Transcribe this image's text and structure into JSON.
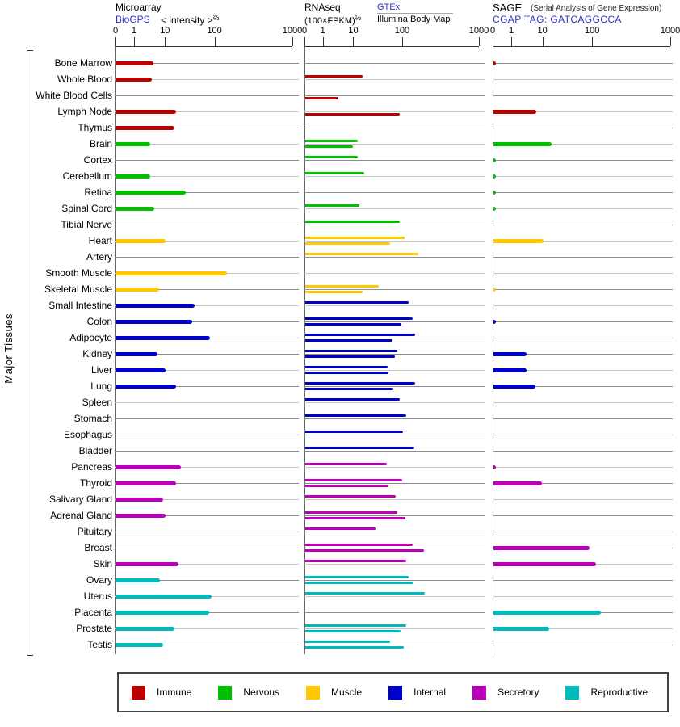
{
  "panels": {
    "microarray": {
      "title": "Microarray",
      "link": "BioGPS",
      "transform": "< intensity >",
      "transform_sup": "⅔"
    },
    "rnaseq": {
      "title": "RNAseq",
      "transform": "(100×FPKM)",
      "transform_sup": "½",
      "link": "GTEx",
      "second_source": "Illumina Body Map"
    },
    "sage": {
      "title": "SAGE",
      "subtitle": "(Serial Analysis of Gene Expression)",
      "tag": "CGAP TAG: GATCAGGCCA"
    }
  },
  "left_axis_label": "Major Tissues",
  "axis_ticks": [
    "0",
    "1",
    "10",
    "100",
    "1000"
  ],
  "colors": {
    "link": "#3333CC",
    "grid_dark": "#8C8C8C",
    "grid_light": "#C4C4C4",
    "axis": "#333333",
    "immune": "#BB0000",
    "nervous": "#00C000",
    "muscle": "#FFC800",
    "internal": "#0000CC",
    "secretory": "#BB00BB",
    "reproductive": "#00BBBB"
  },
  "legend": {
    "items": [
      {
        "label": "Immune",
        "category": "immune",
        "color": "#BB0000"
      },
      {
        "label": "Nervous",
        "category": "nervous",
        "color": "#00C000"
      },
      {
        "label": "Muscle",
        "category": "muscle",
        "color": "#FFC800"
      },
      {
        "label": "Internal",
        "category": "internal",
        "color": "#0000CC"
      },
      {
        "label": "Secretory",
        "category": "secretory",
        "color": "#BB00BB"
      },
      {
        "label": "Reproductive",
        "category": "reproductive",
        "color": "#00BBBB"
      }
    ]
  },
  "chart_data": {
    "type": "bar",
    "orientation": "horizontal",
    "x_scale": "log-like with zero origin",
    "x_ticks": [
      0,
      1,
      10,
      100,
      1000
    ],
    "panels": [
      {
        "name": "Microarray",
        "series": [
          "BioGPS < intensity >^(2/3)"
        ]
      },
      {
        "name": "RNAseq",
        "series": [
          "GTEx (100×FPKM)^(1/2)",
          "Illumina Body Map (100×FPKM)^(1/2)"
        ]
      },
      {
        "name": "SAGE",
        "series": [
          "CGAP TAG: GATCAGGCCA"
        ]
      }
    ],
    "tissues": [
      {
        "name": "Bone Marrow",
        "category": "immune",
        "microarray": 4,
        "rnaseq_gtex": null,
        "rnaseq_illumina": null,
        "sage": 0.15
      },
      {
        "name": "Whole Blood",
        "category": "immune",
        "microarray": 3.6,
        "rnaseq_gtex": 15,
        "rnaseq_illumina": null,
        "sage": null
      },
      {
        "name": "White Blood Cells",
        "category": "immune",
        "microarray": null,
        "rnaseq_gtex": null,
        "rnaseq_illumina": 3,
        "sage": null
      },
      {
        "name": "Lymph Node",
        "category": "immune",
        "microarray": 16,
        "rnaseq_gtex": null,
        "rnaseq_illumina": 85,
        "sage": 6
      },
      {
        "name": "Thymus",
        "category": "immune",
        "microarray": 15,
        "rnaseq_gtex": null,
        "rnaseq_illumina": null,
        "sage": null
      },
      {
        "name": "Brain",
        "category": "nervous",
        "microarray": 3.2,
        "rnaseq_gtex": 12,
        "rnaseq_illumina": 9,
        "sage": 15
      },
      {
        "name": "Cortex",
        "category": "nervous",
        "microarray": null,
        "rnaseq_gtex": 12,
        "rnaseq_illumina": null,
        "sage": 0.15
      },
      {
        "name": "Cerebellum",
        "category": "nervous",
        "microarray": 3.2,
        "rnaseq_gtex": 16,
        "rnaseq_illumina": null,
        "sage": 0.15
      },
      {
        "name": "Retina",
        "category": "nervous",
        "microarray": 25,
        "rnaseq_gtex": null,
        "rnaseq_illumina": null,
        "sage": 0.15
      },
      {
        "name": "Spinal Cord",
        "category": "nervous",
        "microarray": 4.3,
        "rnaseq_gtex": 13,
        "rnaseq_illumina": null,
        "sage": 0.15
      },
      {
        "name": "Tibial Nerve",
        "category": "nervous",
        "microarray": null,
        "rnaseq_gtex": 85,
        "rnaseq_illumina": null,
        "sage": null
      },
      {
        "name": "Heart",
        "category": "muscle",
        "microarray": 10,
        "rnaseq_gtex": 105,
        "rnaseq_illumina": 55,
        "sage": 10
      },
      {
        "name": "Artery",
        "category": "muscle",
        "microarray": null,
        "rnaseq_gtex": 160,
        "rnaseq_illumina": null,
        "sage": null
      },
      {
        "name": "Smooth Muscle",
        "category": "muscle",
        "microarray": 140,
        "rnaseq_gtex": null,
        "rnaseq_illumina": null,
        "sage": null
      },
      {
        "name": "Skeletal Muscle",
        "category": "muscle",
        "microarray": 6,
        "rnaseq_gtex": 32,
        "rnaseq_illumina": 15,
        "sage": 0.15
      },
      {
        "name": "Small Intestine",
        "category": "internal",
        "microarray": 38,
        "rnaseq_gtex": 120,
        "rnaseq_illumina": null,
        "sage": null
      },
      {
        "name": "Colon",
        "category": "internal",
        "microarray": 34,
        "rnaseq_gtex": 135,
        "rnaseq_illumina": 93,
        "sage": 0.15
      },
      {
        "name": "Adipocyte",
        "category": "internal",
        "microarray": 77,
        "rnaseq_gtex": 145,
        "rnaseq_illumina": 62,
        "sage": null
      },
      {
        "name": "Kidney",
        "category": "internal",
        "microarray": 5.5,
        "rnaseq_gtex": 77,
        "rnaseq_illumina": 69,
        "sage": 3
      },
      {
        "name": "Liver",
        "category": "internal",
        "microarray": 10,
        "rnaseq_gtex": 49,
        "rnaseq_illumina": 51,
        "sage": 3
      },
      {
        "name": "Lung",
        "category": "internal",
        "microarray": 16,
        "rnaseq_gtex": 145,
        "rnaseq_illumina": 64,
        "sage": 5.5
      },
      {
        "name": "Spleen",
        "category": "internal",
        "microarray": null,
        "rnaseq_gtex": 86,
        "rnaseq_illumina": null,
        "sage": null
      },
      {
        "name": "Stomach",
        "category": "internal",
        "microarray": null,
        "rnaseq_gtex": 110,
        "rnaseq_illumina": null,
        "sage": null
      },
      {
        "name": "Esophagus",
        "category": "internal",
        "microarray": null,
        "rnaseq_gtex": 100,
        "rnaseq_illumina": null,
        "sage": null
      },
      {
        "name": "Bladder",
        "category": "internal",
        "microarray": null,
        "rnaseq_gtex": 140,
        "rnaseq_illumina": null,
        "sage": null
      },
      {
        "name": "Pancreas",
        "category": "secretory",
        "microarray": 20,
        "rnaseq_gtex": 46,
        "rnaseq_illumina": null,
        "sage": 0.15
      },
      {
        "name": "Thyroid",
        "category": "secretory",
        "microarray": 16,
        "rnaseq_gtex": 97,
        "rnaseq_illumina": 51,
        "sage": 9
      },
      {
        "name": "Salivary Gland",
        "category": "secretory",
        "microarray": 8,
        "rnaseq_gtex": 72,
        "rnaseq_illumina": null,
        "sage": null
      },
      {
        "name": "Adrenal Gland",
        "category": "secretory",
        "microarray": 10,
        "rnaseq_gtex": 77,
        "rnaseq_illumina": 108,
        "sage": null
      },
      {
        "name": "Pituitary",
        "category": "secretory",
        "microarray": null,
        "rnaseq_gtex": 27,
        "rnaseq_illumina": null,
        "sage": null
      },
      {
        "name": "Breast",
        "category": "secretory",
        "microarray": null,
        "rnaseq_gtex": 134,
        "rnaseq_illumina": 190,
        "sage": 85
      },
      {
        "name": "Skin",
        "category": "secretory",
        "microarray": 18,
        "rnaseq_gtex": 110,
        "rnaseq_illumina": null,
        "sage": 110
      },
      {
        "name": "Ovary",
        "category": "reproductive",
        "microarray": 6.5,
        "rnaseq_gtex": 119,
        "rnaseq_illumina": 137,
        "sage": null
      },
      {
        "name": "Uterus",
        "category": "reproductive",
        "microarray": 83,
        "rnaseq_gtex": 194,
        "rnaseq_illumina": null,
        "sage": null
      },
      {
        "name": "Placenta",
        "category": "reproductive",
        "microarray": 74,
        "rnaseq_gtex": null,
        "rnaseq_illumina": null,
        "sage": 125
      },
      {
        "name": "Prostate",
        "category": "reproductive",
        "microarray": 15,
        "rnaseq_gtex": 110,
        "rnaseq_illumina": 89,
        "sage": 13
      },
      {
        "name": "Testis",
        "category": "reproductive",
        "microarray": 8,
        "rnaseq_gtex": 55,
        "rnaseq_illumina": 102,
        "sage": null
      }
    ]
  }
}
